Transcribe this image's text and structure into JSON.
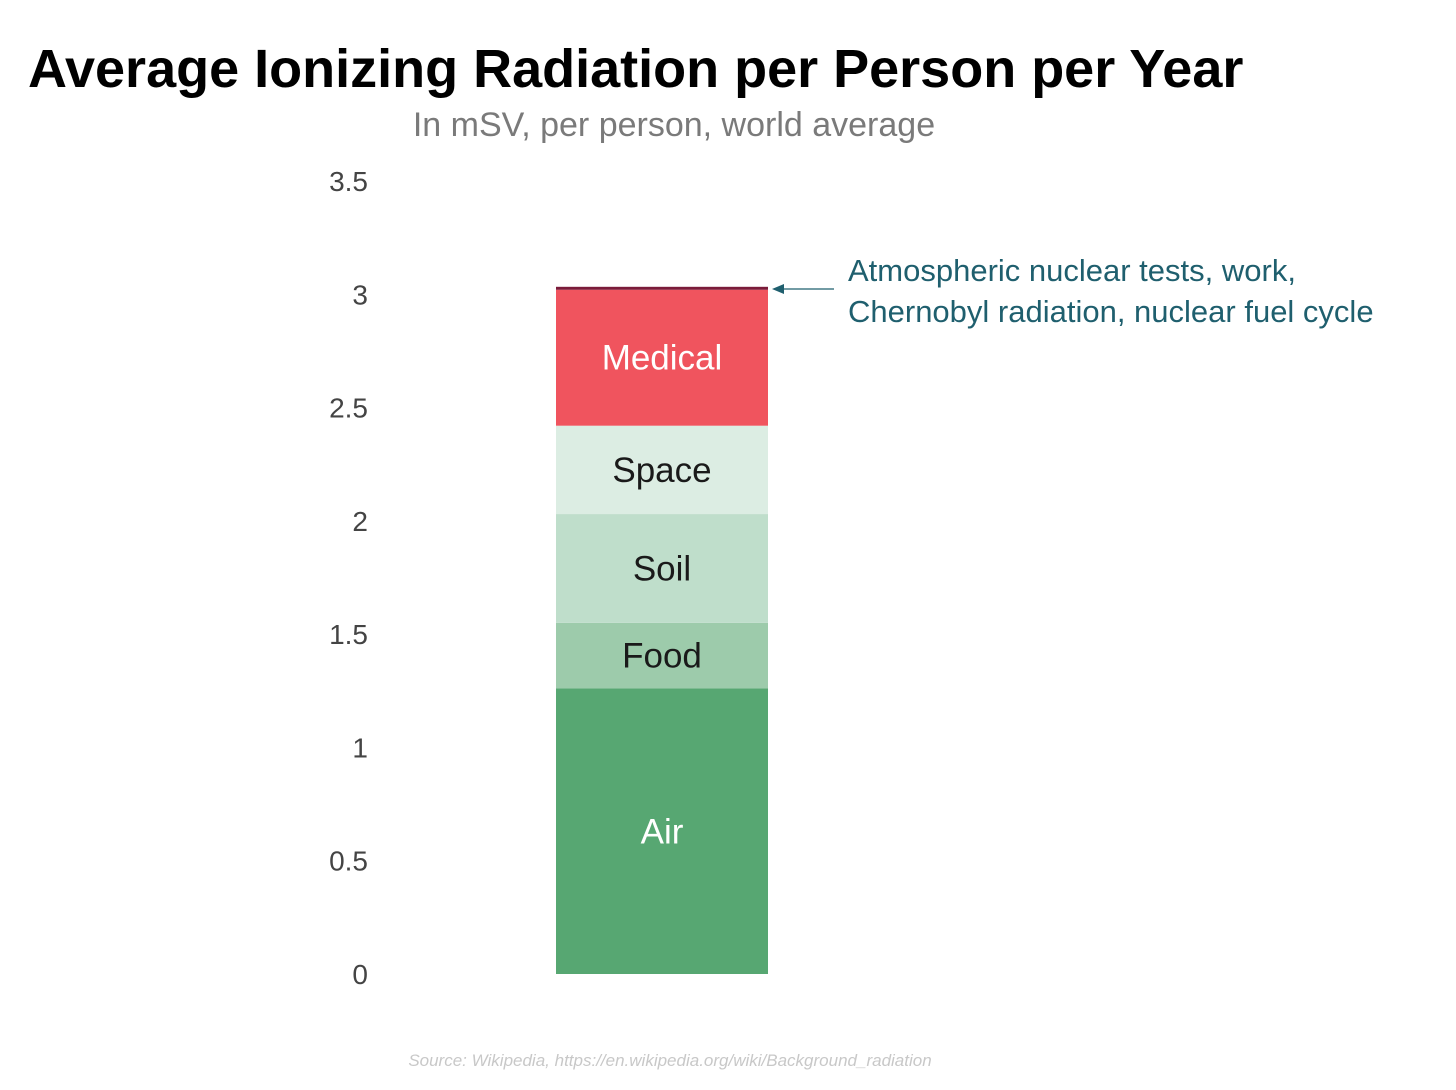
{
  "chart_data": {
    "type": "bar",
    "stacked": true,
    "title": "Average Ionizing Radiation per Person per Year",
    "subtitle": "In mSV, per person, world average",
    "xlabel": "",
    "ylabel": "",
    "ylim": [
      0,
      3.5
    ],
    "yticks": [
      "0",
      "0.5",
      "1",
      "1.5",
      "2",
      "2.5",
      "3",
      "3.5"
    ],
    "grid": false,
    "segments": [
      {
        "label": "Air",
        "value": 1.26,
        "color": "#57a772",
        "text_color": "#ffffff"
      },
      {
        "label": "Food",
        "value": 0.29,
        "color": "#9dcbab",
        "text_color": "#1a1a1a"
      },
      {
        "label": "Soil",
        "value": 0.48,
        "color": "#bfdecb",
        "text_color": "#1a1a1a"
      },
      {
        "label": "Space",
        "value": 0.39,
        "color": "#dcede3",
        "text_color": "#1a1a1a"
      },
      {
        "label": "Medical",
        "value": 0.6,
        "color": "#f0545e",
        "text_color": "#ffffff"
      },
      {
        "label": "",
        "value": 0.013,
        "color": "#7a1b3a",
        "text_color": "#ffffff"
      }
    ],
    "annotation": {
      "lines": [
        "Atmospheric nuclear tests, work,",
        "Chernobyl radiation, nuclear fuel cycle"
      ],
      "color": "#1f5f6e"
    },
    "source": "Source: Wikipedia, https://en.wikipedia.org/wiki/Background_radiation"
  }
}
